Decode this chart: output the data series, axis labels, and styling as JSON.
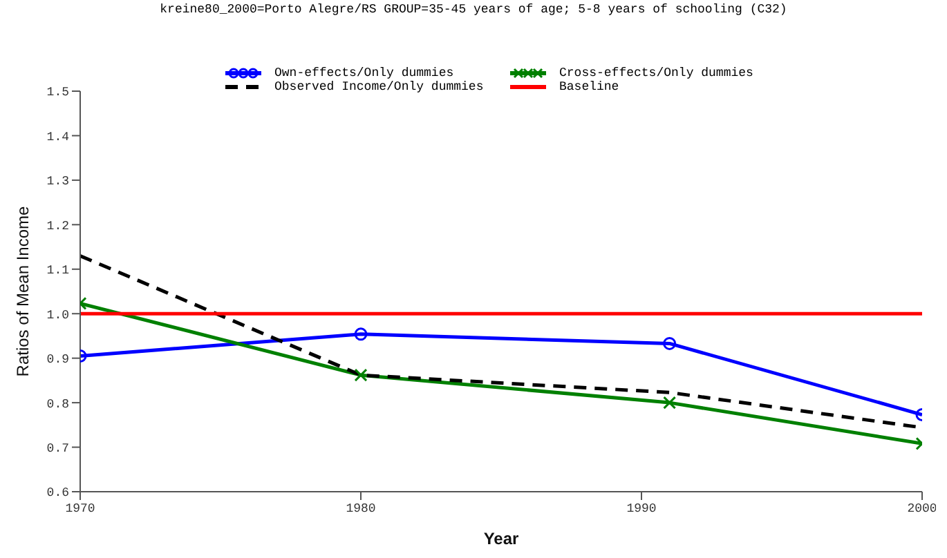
{
  "chart_data": {
    "type": "line",
    "title": "kreine80_2000=Porto Alegre/RS GROUP=35-45 years of age; 5-8 years of schooling (C32)",
    "xlabel": "Year",
    "ylabel": "Ratios of Mean Income",
    "xlim": [
      1970,
      2000
    ],
    "xticks": [
      1970,
      1980,
      1990,
      2000
    ],
    "ylim": [
      0.6,
      1.5
    ],
    "yticks": [
      {
        "value": 0.6,
        "label": "0.6"
      },
      {
        "value": 0.7,
        "label": "0.7"
      },
      {
        "value": 0.8,
        "label": "0.8"
      },
      {
        "value": 0.9,
        "label": "0.9"
      },
      {
        "value": 1.0,
        "label": "1.0"
      },
      {
        "value": 1.1,
        "label": "1.1"
      },
      {
        "value": 1.2,
        "label": "1.2"
      },
      {
        "value": 1.3,
        "label": "1.3"
      },
      {
        "value": 1.4,
        "label": "1.4"
      },
      {
        "value": 1.5,
        "label": "1.5"
      }
    ],
    "grid": false,
    "legend": "top",
    "series": [
      {
        "name": "Own-effects/Only dummies",
        "color": "#0000ff",
        "x": [
          1970,
          1980,
          1991,
          2000
        ],
        "values": [
          0.905,
          0.954,
          0.933,
          0.773
        ],
        "marker": "circle",
        "line_style": "solid"
      },
      {
        "name": "Cross-effects/Only dummies",
        "color": "#008000",
        "x": [
          1970,
          1980,
          1991,
          2000
        ],
        "values": [
          1.023,
          0.862,
          0.8,
          0.708
        ],
        "marker": "cross",
        "line_style": "solid"
      },
      {
        "name": "Observed Income/Only dummies",
        "color": "#000000",
        "x": [
          1970,
          1980,
          1991,
          2000
        ],
        "values": [
          1.13,
          0.862,
          0.823,
          0.744
        ],
        "marker": "none",
        "line_style": "dashed"
      },
      {
        "name": "Baseline",
        "color": "#ff0000",
        "x": [
          1970,
          2000
        ],
        "values": [
          1.0,
          1.0
        ],
        "marker": "none",
        "line_style": "solid"
      }
    ]
  }
}
